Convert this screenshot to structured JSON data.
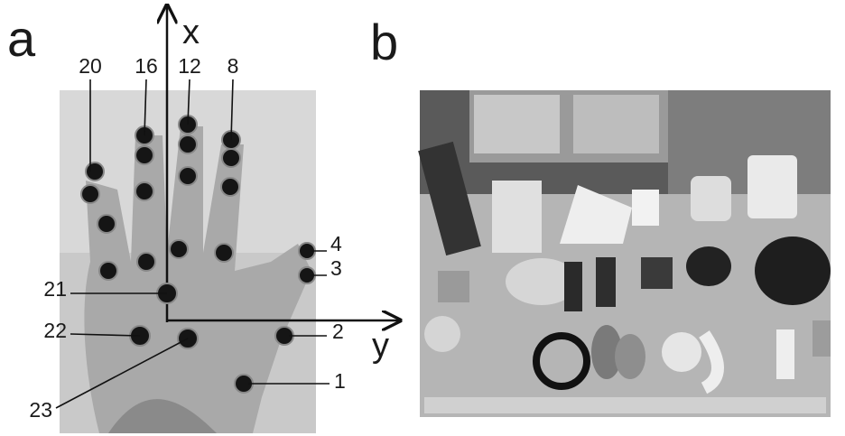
{
  "panels": [
    {
      "label": "a",
      "axes": {
        "x": "x",
        "y": "y"
      },
      "markers": [
        "20",
        "16",
        "12",
        "8",
        "4",
        "3",
        "21",
        "2",
        "22",
        "1",
        "23"
      ]
    },
    {
      "label": "b"
    }
  ]
}
